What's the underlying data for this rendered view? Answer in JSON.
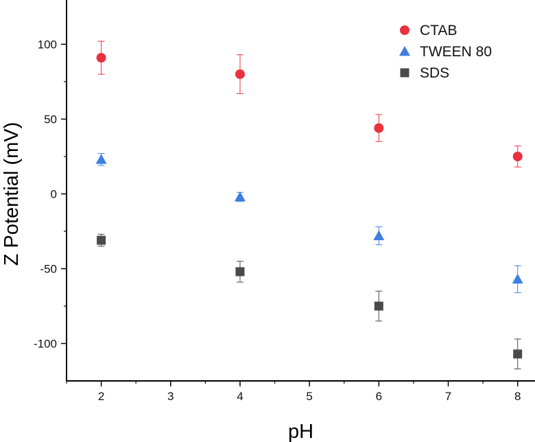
{
  "chart_data": {
    "type": "scatter",
    "title": "",
    "xlabel": "pH",
    "ylabel": "Z Potential (mV)",
    "xlim": [
      1.5,
      8.25
    ],
    "ylim": [
      -125,
      125
    ],
    "xticks": [
      2,
      3,
      4,
      5,
      6,
      7,
      8
    ],
    "xtick_labels": [
      "2",
      "3",
      "4",
      "5",
      "6",
      "7",
      "8"
    ],
    "yticks": [
      -100,
      -50,
      0,
      50,
      100
    ],
    "ytick_labels": [
      "-100",
      "-50",
      "0",
      "50",
      "100"
    ],
    "grid": false,
    "legend_position": "top-right",
    "series": [
      {
        "name": "CTAB",
        "marker": "circle",
        "color": "#e8323e",
        "x": [
          2,
          4,
          6,
          8
        ],
        "y": [
          91,
          80,
          44,
          25
        ],
        "err_plus": [
          11,
          13,
          9,
          7
        ],
        "err_minus": [
          11,
          13,
          9,
          7
        ]
      },
      {
        "name": "TWEEN 80",
        "marker": "triangle",
        "color": "#3f7fe0",
        "x": [
          2,
          4,
          6,
          8
        ],
        "y": [
          23,
          -2,
          -28,
          -57
        ],
        "err_plus": [
          4,
          3,
          6,
          9
        ],
        "err_minus": [
          4,
          3,
          6,
          9
        ]
      },
      {
        "name": "SDS",
        "marker": "square",
        "color": "#4a4a4a",
        "x": [
          2,
          4,
          6,
          8
        ],
        "y": [
          -31,
          -52,
          -75,
          -107
        ],
        "err_plus": [
          4,
          7,
          10,
          10
        ],
        "err_minus": [
          4,
          7,
          10,
          10
        ]
      }
    ]
  }
}
